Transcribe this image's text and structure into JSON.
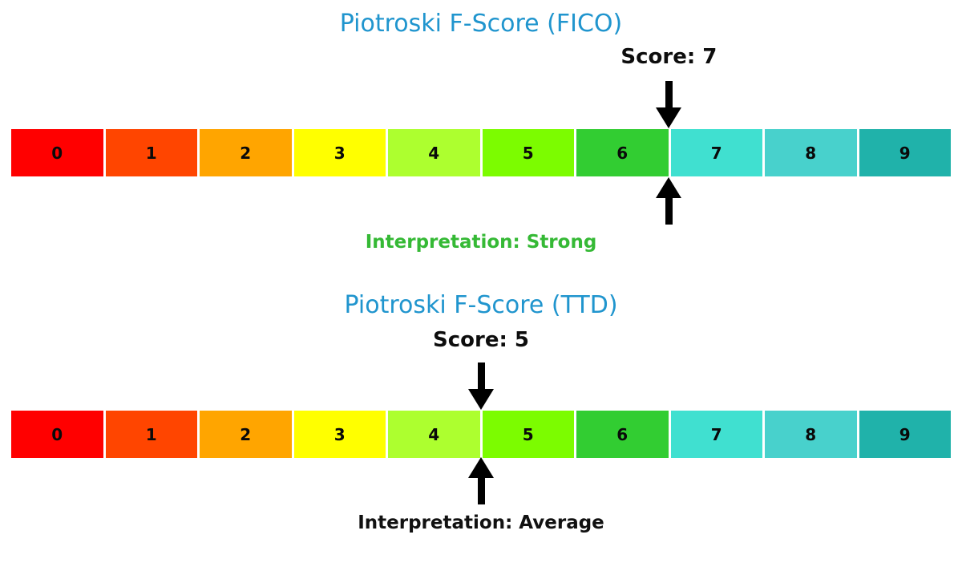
{
  "figure": {
    "background": "#FFFFFF",
    "title_color": "#2095CE",
    "arrow_color": "#000000"
  },
  "scale": {
    "values": [
      "0",
      "1",
      "2",
      "3",
      "4",
      "5",
      "6",
      "7",
      "8",
      "9"
    ],
    "colors": [
      "#FF0000",
      "#FF4500",
      "#FFA500",
      "#FFFF00",
      "#ADFF2F",
      "#7CFC00",
      "#32CD32",
      "#40E0D0",
      "#48D1CC",
      "#20B2AA"
    ]
  },
  "panels": [
    {
      "title": "Piotroski F-Score (FICO)",
      "score": 7,
      "score_label": "Score: 7",
      "interpretation_label": "Interpretation: Strong",
      "interpretation_color": "#35B935"
    },
    {
      "title": "Piotroski F-Score (TTD)",
      "score": 5,
      "score_label": "Score: 5",
      "interpretation_label": "Interpretation: Average",
      "interpretation_color": "#111111"
    }
  ],
  "chart_data": [
    {
      "type": "bar",
      "subtype": "discrete-score-gauge",
      "title": "Piotroski F-Score (FICO)",
      "categories": [
        0,
        1,
        2,
        3,
        4,
        5,
        6,
        7,
        8,
        9
      ],
      "cell_colors": [
        "#FF0000",
        "#FF4500",
        "#FFA500",
        "#FFFF00",
        "#ADFF2F",
        "#7CFC00",
        "#32CD32",
        "#40E0D0",
        "#48D1CC",
        "#20B2AA"
      ],
      "score": 7,
      "score_label": "Score: 7",
      "interpretation": "Interpretation: Strong",
      "marker": "black arrows above and below the scale at the boundary between cells 6 and 7",
      "xlim": [
        0,
        10
      ],
      "grid": false,
      "legend": false
    },
    {
      "type": "bar",
      "subtype": "discrete-score-gauge",
      "title": "Piotroski F-Score (TTD)",
      "categories": [
        0,
        1,
        2,
        3,
        4,
        5,
        6,
        7,
        8,
        9
      ],
      "cell_colors": [
        "#FF0000",
        "#FF4500",
        "#FFA500",
        "#FFFF00",
        "#ADFF2F",
        "#7CFC00",
        "#32CD32",
        "#40E0D0",
        "#48D1CC",
        "#20B2AA"
      ],
      "score": 5,
      "score_label": "Score: 5",
      "interpretation": "Interpretation: Average",
      "marker": "black arrows above and below the scale at the boundary between cells 4 and 5",
      "xlim": [
        0,
        10
      ],
      "grid": false,
      "legend": false
    }
  ]
}
